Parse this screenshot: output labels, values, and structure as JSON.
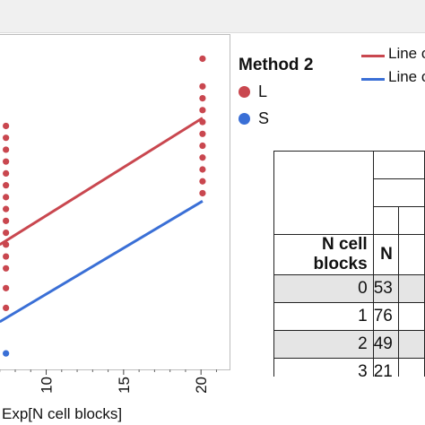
{
  "chart_data": {
    "type": "scatter",
    "xlabel": "Exp[N cell blocks]",
    "xticks": [
      10,
      15,
      20
    ],
    "series": [
      {
        "name": "L",
        "color": "#c9474f",
        "points": [
          [
            7.4,
            9.2
          ],
          [
            7.4,
            8.9
          ],
          [
            7.4,
            8.6
          ],
          [
            7.4,
            8.3
          ],
          [
            7.4,
            8.0
          ],
          [
            7.4,
            7.7
          ],
          [
            7.4,
            7.4
          ],
          [
            7.4,
            7.1
          ],
          [
            7.4,
            6.8
          ],
          [
            7.4,
            6.5
          ],
          [
            7.4,
            6.2
          ],
          [
            7.4,
            5.9
          ],
          [
            7.4,
            5.6
          ],
          [
            7.4,
            5.1
          ],
          [
            7.4,
            4.6
          ],
          [
            20.1,
            10.9
          ],
          [
            20.1,
            10.2
          ],
          [
            20.1,
            9.9
          ],
          [
            20.1,
            9.6
          ],
          [
            20.1,
            9.3
          ],
          [
            20.1,
            9.0
          ],
          [
            20.1,
            8.7
          ],
          [
            20.1,
            8.4
          ],
          [
            20.1,
            8.1
          ],
          [
            20.1,
            7.8
          ],
          [
            20.1,
            7.5
          ]
        ]
      },
      {
        "name": "S",
        "color": "#3a6fd6",
        "points": [
          [
            7.4,
            3.45
          ]
        ]
      }
    ],
    "fit_lines": [
      {
        "label": "Line o",
        "color": "#c9474f",
        "from": [
          7.0,
          6.2
        ],
        "to": [
          20.1,
          9.4
        ]
      },
      {
        "label": "Line o",
        "color": "#3a6fd6",
        "from": [
          7.0,
          4.25
        ],
        "to": [
          20.1,
          7.3
        ]
      }
    ],
    "xlim": [
      6.9,
      21.9
    ],
    "ylim": [
      3.0,
      11.5
    ]
  },
  "legend": {
    "title": "Method 2",
    "items": [
      {
        "label": "L",
        "color": "#c9474f"
      },
      {
        "label": "S",
        "color": "#3a6fd6"
      }
    ]
  },
  "line_legend": [
    {
      "label": "Line o",
      "color": "#c9474f"
    },
    {
      "label": "Line o",
      "color": "#3a6fd6"
    }
  ],
  "table": {
    "col_header": "N cell blocks",
    "col_n": "N",
    "rows": [
      {
        "blocks": "0",
        "n": "53"
      },
      {
        "blocks": "1",
        "n": "76"
      },
      {
        "blocks": "2",
        "n": "49"
      },
      {
        "blocks": "3",
        "n": "21"
      }
    ]
  }
}
